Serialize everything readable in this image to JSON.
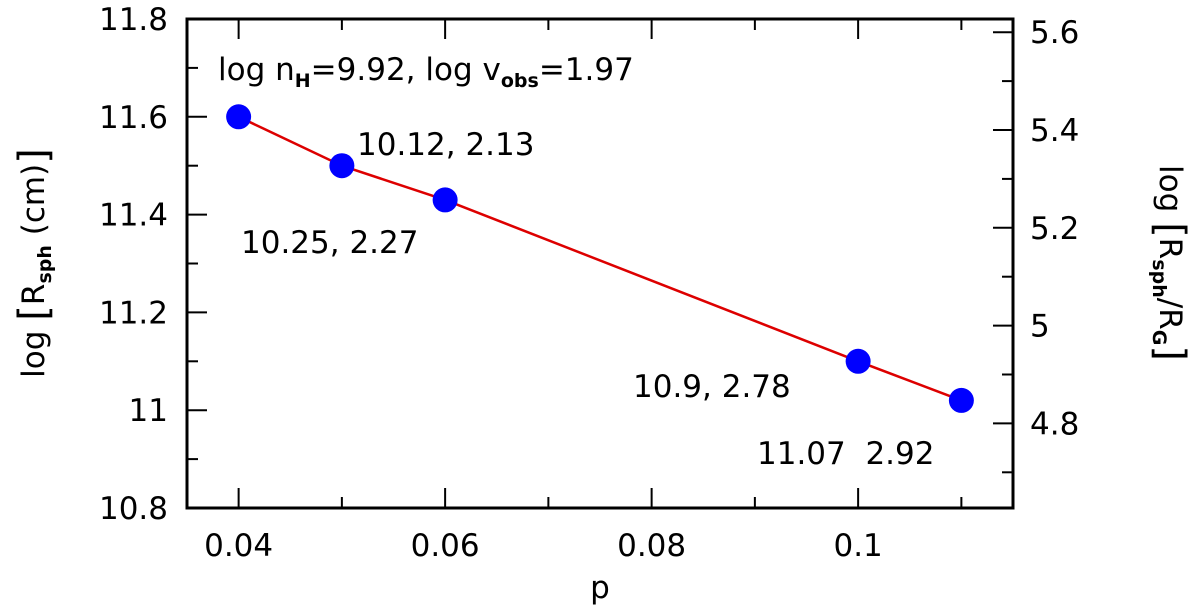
{
  "chart_data": {
    "type": "scatter",
    "xlabel": "p",
    "ylabel": "log [R_sph (cm)]",
    "ylabel_right": "log [R_sph/R_G]",
    "xlim": [
      0.035,
      0.115
    ],
    "ylim": [
      10.8,
      11.8
    ],
    "ylim_right": [
      4.627,
      5.627
    ],
    "x_ticks": [
      "0.04",
      "0.06",
      "0.08",
      "0.1"
    ],
    "y_ticks": [
      "10.8",
      "11",
      "11.2",
      "11.4",
      "11.6",
      "11.8"
    ],
    "y_ticks_right": [
      "4.8",
      "5",
      "5.2",
      "5.4",
      "5.6"
    ],
    "series": [
      {
        "points": [
          {
            "x": 0.04,
            "y": 11.6
          },
          {
            "x": 0.05,
            "y": 11.5
          },
          {
            "x": 0.06,
            "y": 11.43
          },
          {
            "x": 0.1,
            "y": 11.1
          },
          {
            "x": 0.11,
            "y": 11.02
          }
        ],
        "marker_color": "#0000ff",
        "line_color": "#dd0000"
      }
    ],
    "annotations": [
      {
        "text": "10.12, 2.13"
      },
      {
        "text": "10.25, 2.27"
      },
      {
        "text": "10.9, 2.78"
      },
      {
        "text": "11.07  2.92"
      }
    ],
    "header_annotation": {
      "log_n": "log n",
      "n_sub": "H",
      "n_value": "=9.92,  log v",
      "v_sub": "obs",
      "v_value": "=1.97"
    },
    "axis_title_parts": {
      "left_prefix": "log ",
      "left_R": "R",
      "left_sub": "sph",
      "left_suffix": " (cm)",
      "right_prefix": "log ",
      "right_R": "R",
      "right_sub": "sph",
      "right_mid": "/R",
      "right_sub2": "G"
    },
    "grid": false
  }
}
